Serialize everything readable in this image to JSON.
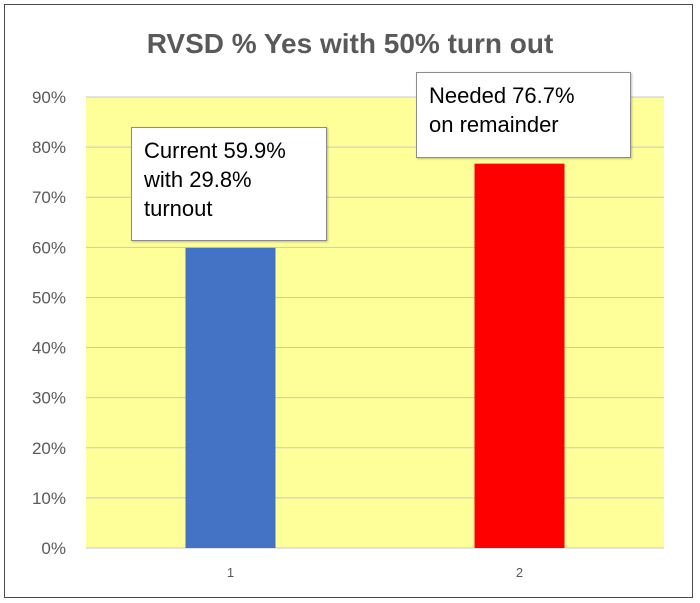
{
  "chart_data": {
    "type": "bar",
    "title": "RVSD % Yes with 50% turn out",
    "categories": [
      "1",
      "2"
    ],
    "values": [
      59.9,
      76.7
    ],
    "bar_colors": [
      "#4472C4",
      "#FF0000"
    ],
    "plot_background": "#FFFF99",
    "gridline_color": "#C8C8C8",
    "ylim": [
      0,
      90
    ],
    "ytick_values": [
      0,
      10,
      20,
      30,
      40,
      50,
      60,
      70,
      80,
      90
    ],
    "ytick_labels": [
      "0%",
      "10%",
      "20%",
      "30%",
      "40%",
      "50%",
      "60%",
      "70%",
      "80%",
      "90%"
    ],
    "grid": true,
    "xlabel": "",
    "ylabel": "",
    "annotations": [
      {
        "category": "1",
        "text": "Current 59.9%\nwith 29.8%\nturnout"
      },
      {
        "category": "2",
        "text": "Needed 76.7%\non remainder"
      }
    ]
  }
}
